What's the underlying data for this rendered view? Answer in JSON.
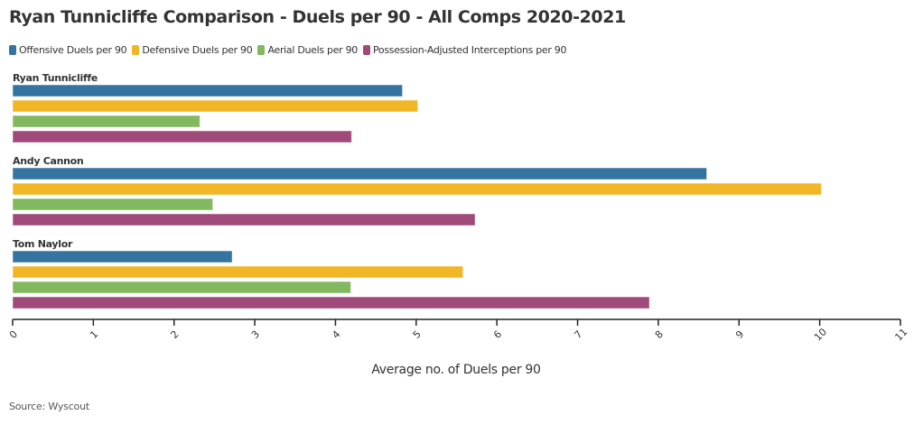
{
  "chart_data": {
    "type": "bar",
    "orientation": "horizontal",
    "title": "Ryan Tunnicliffe Comparison - Duels per 90 - All Comps 2020-2021",
    "xlabel": "Average no. of Duels per 90",
    "ylabel": "",
    "xlim": [
      0,
      11
    ],
    "xticks": [
      "0",
      "1",
      "2",
      "3",
      "4",
      "5",
      "6",
      "7",
      "8",
      "9",
      "10",
      "11"
    ],
    "grid": false,
    "legend_position": "top-left",
    "categories": [
      "Ryan Tunnicliffe",
      "Andy Cannon",
      "Tom Naylor"
    ],
    "series": [
      {
        "name": "Offensive Duels per 90",
        "color": "#3574a0",
        "values": [
          4.83,
          8.6,
          2.72
        ]
      },
      {
        "name": "Defensive Duels per 90",
        "color": "#f0b625",
        "values": [
          5.02,
          10.02,
          5.58
        ]
      },
      {
        "name": "Aerial Duels per 90",
        "color": "#82b85e",
        "values": [
          2.32,
          2.48,
          4.19
        ]
      },
      {
        "name": "Possession-Adjusted Interceptions per 90",
        "color": "#a04a7a",
        "values": [
          4.2,
          5.73,
          7.89
        ]
      }
    ],
    "source": "Source: Wyscout"
  }
}
